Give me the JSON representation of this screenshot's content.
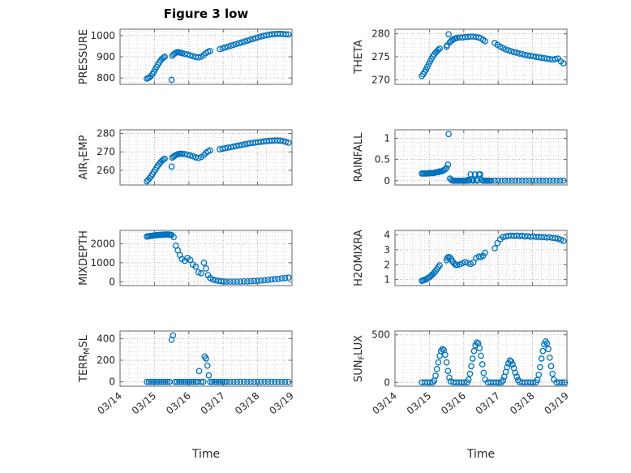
{
  "figure": {
    "title": "Figure 3 low",
    "xlabel": "Time",
    "marker_color": "#0072BD",
    "text_color": "#262626",
    "grid_color": "#b3b3b3",
    "minor_grid_color": "#d2d2d2",
    "box_color": "#666666"
  },
  "x_axis": {
    "lim": [
      0,
      5
    ],
    "ticks": [
      0,
      1,
      2,
      3,
      4,
      5
    ],
    "labels": [
      "03/14",
      "03/15",
      "03/16",
      "03/17",
      "03/18",
      "03/19"
    ],
    "minor_step": 0.25
  },
  "chart_data": [
    {
      "type": "scatter",
      "name": "PRESSURE",
      "ylabel_parts": [
        {
          "text": "PRESSURE"
        }
      ],
      "ylim": [
        770,
        1030
      ],
      "yticks": [
        800,
        900,
        1000
      ],
      "ytick_labels": [
        "800",
        "900",
        "1000"
      ],
      "x": [
        0.78,
        0.82,
        0.86,
        0.9,
        0.94,
        0.98,
        1.02,
        1.06,
        1.1,
        1.14,
        1.18,
        1.22,
        1.26,
        1.3,
        1.5,
        1.52,
        1.56,
        1.6,
        1.64,
        1.68,
        1.72,
        1.76,
        1.8,
        1.88,
        1.96,
        2.04,
        2.12,
        2.2,
        2.28,
        2.36,
        2.44,
        2.5,
        2.56,
        2.62,
        2.9,
        2.98,
        3.06,
        3.14,
        3.22,
        3.3,
        3.38,
        3.46,
        3.54,
        3.62,
        3.7,
        3.78,
        3.86,
        3.94,
        4.02,
        4.1,
        4.18,
        4.26,
        4.34,
        4.42,
        4.5,
        4.58,
        4.66,
        4.74,
        4.82,
        4.9
      ],
      "y": [
        797,
        800,
        804,
        810,
        818,
        828,
        840,
        852,
        863,
        873,
        882,
        890,
        896,
        900,
        791,
        905,
        912,
        917,
        920,
        922,
        921,
        919,
        917,
        914,
        911,
        907,
        903,
        899,
        897,
        901,
        909,
        918,
        924,
        927,
        936,
        940,
        944,
        948,
        952,
        956,
        960,
        964,
        968,
        972,
        976,
        980,
        984,
        988,
        992,
        996,
        999,
        1002,
        1004,
        1006,
        1007,
        1008,
        1008,
        1007,
        1006,
        1005
      ]
    },
    {
      "type": "scatter",
      "name": "THETA",
      "ylabel_parts": [
        {
          "text": "THETA"
        }
      ],
      "ylim": [
        269,
        281
      ],
      "yticks": [
        270,
        275,
        280
      ],
      "ytick_labels": [
        "270",
        "275",
        "280"
      ],
      "x": [
        0.78,
        0.82,
        0.86,
        0.9,
        0.94,
        0.98,
        1.02,
        1.06,
        1.1,
        1.14,
        1.18,
        1.22,
        1.26,
        1.3,
        1.5,
        1.52,
        1.56,
        1.6,
        1.64,
        1.68,
        1.72,
        1.76,
        1.8,
        1.88,
        1.96,
        2.04,
        2.12,
        2.2,
        2.28,
        2.36,
        2.44,
        2.5,
        2.56,
        2.62,
        2.9,
        2.98,
        3.06,
        3.14,
        3.22,
        3.3,
        3.38,
        3.46,
        3.54,
        3.62,
        3.7,
        3.78,
        3.86,
        3.94,
        4.02,
        4.1,
        4.18,
        4.26,
        4.34,
        4.42,
        4.5,
        4.58,
        4.66,
        4.74,
        4.82,
        4.9
      ],
      "y": [
        270.8,
        271.2,
        271.7,
        272.2,
        272.8,
        273.4,
        274.0,
        274.6,
        275.1,
        275.5,
        275.9,
        276.2,
        276.5,
        276.8,
        277.2,
        277.5,
        279.9,
        278.2,
        278.5,
        278.7,
        278.9,
        279.0,
        279.1,
        279.2,
        279.2,
        279.3,
        279.3,
        279.4,
        279.4,
        279.3,
        279.2,
        279.0,
        278.7,
        278.4,
        278.0,
        277.6,
        277.2,
        276.9,
        276.6,
        276.4,
        276.2,
        276.0,
        275.9,
        275.7,
        275.6,
        275.4,
        275.3,
        275.2,
        275.1,
        275.0,
        274.9,
        274.8,
        274.7,
        274.6,
        274.5,
        274.4,
        274.5,
        274.6,
        274.0,
        273.6
      ]
    },
    {
      "type": "scatter",
      "name": "AIR_TEMP",
      "ylabel_parts": [
        {
          "text": "AIR"
        },
        {
          "text": "T",
          "sub": true
        },
        {
          "text": "EMP"
        }
      ],
      "ylim": [
        252,
        282
      ],
      "yticks": [
        260,
        270,
        280
      ],
      "ytick_labels": [
        "260",
        "270",
        "280"
      ],
      "x": [
        0.78,
        0.82,
        0.86,
        0.9,
        0.94,
        0.98,
        1.02,
        1.06,
        1.1,
        1.14,
        1.18,
        1.22,
        1.26,
        1.3,
        1.5,
        1.52,
        1.56,
        1.6,
        1.64,
        1.68,
        1.72,
        1.76,
        1.8,
        1.88,
        1.96,
        2.04,
        2.12,
        2.2,
        2.28,
        2.36,
        2.44,
        2.5,
        2.56,
        2.62,
        2.9,
        2.98,
        3.06,
        3.14,
        3.22,
        3.3,
        3.38,
        3.46,
        3.54,
        3.62,
        3.7,
        3.78,
        3.86,
        3.94,
        4.02,
        4.1,
        4.18,
        4.26,
        4.34,
        4.42,
        4.5,
        4.58,
        4.66,
        4.74,
        4.82,
        4.9
      ],
      "y": [
        254.0,
        254.8,
        255.7,
        256.7,
        257.8,
        259.0,
        260.2,
        261.4,
        262.5,
        263.5,
        264.4,
        265.2,
        265.8,
        266.3,
        262.0,
        266.9,
        267.5,
        268.0,
        268.4,
        268.7,
        268.9,
        269.0,
        269.0,
        268.8,
        268.5,
        268.1,
        267.6,
        267.0,
        266.6,
        267.2,
        268.3,
        269.5,
        270.3,
        270.8,
        271.4,
        271.7,
        272.0,
        272.3,
        272.6,
        272.9,
        273.2,
        273.5,
        273.8,
        274.1,
        274.4,
        274.7,
        274.9,
        275.1,
        275.3,
        275.5,
        275.7,
        275.9,
        276.0,
        276.1,
        276.2,
        276.2,
        276.1,
        275.9,
        275.5,
        275.0
      ]
    },
    {
      "type": "scatter",
      "name": "RAINFALL",
      "ylabel_parts": [
        {
          "text": "RAINFALL"
        }
      ],
      "ylim": [
        -0.1,
        1.2
      ],
      "yticks": [
        0,
        0.5,
        1
      ],
      "ytick_labels": [
        "0",
        "0.5",
        "1"
      ],
      "x": [
        0.78,
        0.82,
        0.86,
        0.9,
        0.94,
        0.98,
        1.02,
        1.06,
        1.1,
        1.14,
        1.18,
        1.22,
        1.26,
        1.3,
        1.34,
        1.38,
        1.42,
        1.46,
        1.5,
        1.54,
        1.56,
        1.6,
        1.64,
        1.68,
        1.72,
        1.76,
        1.8,
        1.84,
        1.88,
        1.92,
        1.96,
        2.0,
        2.04,
        2.08,
        2.12,
        2.16,
        2.2,
        2.24,
        2.28,
        2.32,
        2.36,
        2.4,
        2.44,
        2.48,
        2.52,
        2.56,
        2.6,
        2.64,
        2.68,
        2.72,
        2.76,
        2.8,
        2.9,
        3.0,
        3.1,
        3.2,
        3.3,
        3.4,
        3.5,
        3.6,
        3.7,
        3.8,
        3.9,
        4.0,
        4.1,
        4.2,
        4.3,
        4.4,
        4.5,
        4.6,
        4.7,
        4.8,
        4.9
      ],
      "y": [
        0.17,
        0.17,
        0.17,
        0.17,
        0.17,
        0.18,
        0.18,
        0.18,
        0.18,
        0.18,
        0.2,
        0.2,
        0.2,
        0.22,
        0.22,
        0.23,
        0.25,
        0.27,
        0.3,
        0.38,
        1.1,
        0.05,
        0.02,
        0,
        0,
        0,
        0,
        0,
        0,
        0,
        0,
        0,
        0,
        0,
        0.02,
        0,
        0.15,
        0.02,
        0,
        0.15,
        0.02,
        0,
        0.15,
        0.15,
        0.02,
        0,
        0,
        0,
        0,
        0,
        0,
        0,
        0,
        0,
        0,
        0,
        0,
        0,
        0,
        0,
        0,
        0,
        0,
        0,
        0,
        0,
        0,
        0,
        0,
        0,
        0,
        0,
        0
      ]
    },
    {
      "type": "scatter",
      "name": "MIXDEPTH",
      "ylabel_parts": [
        {
          "text": "MIXDEPTH"
        }
      ],
      "ylim": [
        -200,
        2700
      ],
      "yticks": [
        0,
        1000,
        2000
      ],
      "ytick_labels": [
        "0",
        "1000",
        "2000"
      ],
      "x": [
        0.78,
        0.82,
        0.86,
        0.9,
        0.94,
        0.98,
        1.02,
        1.06,
        1.1,
        1.14,
        1.18,
        1.22,
        1.26,
        1.3,
        1.34,
        1.38,
        1.42,
        1.46,
        1.5,
        1.56,
        1.62,
        1.68,
        1.74,
        1.8,
        1.88,
        1.96,
        2.04,
        2.12,
        2.2,
        2.28,
        2.36,
        2.44,
        2.5,
        2.56,
        2.62,
        2.7,
        2.78,
        2.86,
        2.94,
        3.02,
        3.1,
        3.2,
        3.3,
        3.4,
        3.5,
        3.6,
        3.7,
        3.8,
        3.9,
        4.0,
        4.1,
        4.2,
        4.3,
        4.4,
        4.5,
        4.6,
        4.7,
        4.8,
        4.9
      ],
      "y": [
        2380,
        2390,
        2400,
        2410,
        2420,
        2430,
        2440,
        2450,
        2455,
        2460,
        2465,
        2470,
        2475,
        2480,
        2485,
        2490,
        2480,
        2470,
        2460,
        2350,
        1900,
        1650,
        1400,
        1200,
        1100,
        1250,
        1150,
        900,
        800,
        500,
        450,
        1000,
        700,
        350,
        200,
        120,
        80,
        50,
        30,
        20,
        10,
        10,
        10,
        10,
        10,
        20,
        20,
        30,
        40,
        50,
        60,
        80,
        100,
        120,
        140,
        160,
        180,
        200,
        220
      ]
    },
    {
      "type": "scatter",
      "name": "H2OMIXRA",
      "ylabel_parts": [
        {
          "text": "H2OMIXRA"
        }
      ],
      "ylim": [
        0.6,
        4.3
      ],
      "yticks": [
        1,
        2,
        3,
        4
      ],
      "ytick_labels": [
        "1",
        "2",
        "3",
        "4"
      ],
      "x": [
        0.78,
        0.82,
        0.86,
        0.9,
        0.94,
        0.98,
        1.02,
        1.06,
        1.1,
        1.14,
        1.18,
        1.22,
        1.26,
        1.3,
        1.5,
        1.52,
        1.56,
        1.6,
        1.64,
        1.68,
        1.72,
        1.76,
        1.8,
        1.88,
        1.96,
        2.04,
        2.12,
        2.2,
        2.28,
        2.36,
        2.44,
        2.5,
        2.56,
        2.62,
        2.9,
        2.98,
        3.06,
        3.14,
        3.22,
        3.3,
        3.38,
        3.46,
        3.54,
        3.62,
        3.7,
        3.78,
        3.86,
        3.94,
        4.02,
        4.1,
        4.18,
        4.26,
        4.34,
        4.42,
        4.5,
        4.58,
        4.66,
        4.74,
        4.82,
        4.9
      ],
      "y": [
        0.92,
        0.95,
        0.98,
        1.02,
        1.07,
        1.13,
        1.2,
        1.28,
        1.37,
        1.47,
        1.58,
        1.7,
        1.83,
        1.96,
        2.3,
        2.45,
        2.52,
        2.48,
        2.35,
        2.2,
        2.08,
        2.0,
        1.98,
        2.02,
        2.1,
        2.18,
        2.12,
        2.05,
        2.15,
        2.45,
        2.55,
        2.5,
        2.6,
        2.8,
        3.1,
        3.45,
        3.7,
        3.85,
        3.9,
        3.93,
        3.95,
        3.93,
        3.95,
        3.92,
        3.94,
        3.9,
        3.92,
        3.88,
        3.9,
        3.86,
        3.88,
        3.84,
        3.86,
        3.82,
        3.84,
        3.8,
        3.78,
        3.75,
        3.68,
        3.6
      ]
    },
    {
      "type": "scatter",
      "name": "TERR_MSL",
      "ylabel_parts": [
        {
          "text": "TERR"
        },
        {
          "text": "M",
          "sub": true
        },
        {
          "text": "SL"
        }
      ],
      "ylim": [
        -40,
        470
      ],
      "yticks": [
        0,
        200,
        400
      ],
      "ytick_labels": [
        "0",
        "200",
        "400"
      ],
      "x": [
        0.78,
        0.84,
        0.9,
        0.96,
        1.02,
        1.08,
        1.14,
        1.2,
        1.26,
        1.32,
        1.38,
        1.44,
        1.5,
        1.54,
        1.6,
        1.66,
        1.72,
        1.78,
        1.84,
        1.9,
        1.96,
        2.02,
        2.08,
        2.14,
        2.2,
        2.26,
        2.3,
        2.36,
        2.42,
        2.46,
        2.5,
        2.54,
        2.58,
        2.62,
        2.68,
        2.74,
        2.8,
        2.86,
        2.92,
        2.98,
        3.04,
        3.1,
        3.2,
        3.3,
        3.4,
        3.5,
        3.6,
        3.7,
        3.8,
        3.9,
        4.0,
        4.1,
        4.2,
        4.3,
        4.4,
        4.5,
        4.6,
        4.7,
        4.8,
        4.9
      ],
      "y": [
        0,
        0,
        0,
        0,
        0,
        0,
        0,
        0,
        0,
        0,
        0,
        0,
        390,
        430,
        0,
        0,
        0,
        0,
        0,
        0,
        0,
        0,
        0,
        0,
        0,
        0,
        100,
        0,
        0,
        235,
        215,
        150,
        60,
        0,
        0,
        0,
        0,
        0,
        0,
        0,
        0,
        0,
        0,
        0,
        0,
        0,
        0,
        0,
        0,
        0,
        0,
        0,
        0,
        0,
        0,
        0,
        0,
        0,
        0,
        0
      ]
    },
    {
      "type": "scatter",
      "name": "SUN_FLUX",
      "ylabel_parts": [
        {
          "text": "SUN"
        },
        {
          "text": "F",
          "sub": true
        },
        {
          "text": "LUX"
        }
      ],
      "ylim": [
        -40,
        540
      ],
      "yticks": [
        0,
        500
      ],
      "ytick_labels": [
        "0",
        "500"
      ],
      "x": [
        0.78,
        0.86,
        0.94,
        1.02,
        1.1,
        1.14,
        1.18,
        1.22,
        1.26,
        1.3,
        1.34,
        1.38,
        1.42,
        1.46,
        1.5,
        1.54,
        1.58,
        1.62,
        1.7,
        1.78,
        1.86,
        1.94,
        2.02,
        2.1,
        2.14,
        2.18,
        2.22,
        2.26,
        2.3,
        2.34,
        2.38,
        2.42,
        2.46,
        2.5,
        2.54,
        2.58,
        2.62,
        2.7,
        2.78,
        2.86,
        2.94,
        3.02,
        3.1,
        3.14,
        3.18,
        3.22,
        3.26,
        3.3,
        3.34,
        3.38,
        3.42,
        3.46,
        3.5,
        3.54,
        3.58,
        3.62,
        3.7,
        3.78,
        3.86,
        3.94,
        4.02,
        4.1,
        4.14,
        4.18,
        4.22,
        4.26,
        4.3,
        4.34,
        4.38,
        4.42,
        4.46,
        4.5,
        4.54,
        4.58,
        4.62,
        4.7,
        4.78,
        4.86,
        4.94
      ],
      "y": [
        0,
        0,
        0,
        0,
        0,
        20,
        70,
        140,
        210,
        280,
        330,
        350,
        340,
        290,
        210,
        120,
        50,
        10,
        0,
        0,
        0,
        0,
        0,
        0,
        30,
        90,
        170,
        250,
        330,
        390,
        420,
        410,
        360,
        280,
        190,
        100,
        30,
        0,
        0,
        0,
        0,
        0,
        0,
        20,
        60,
        110,
        160,
        200,
        230,
        220,
        190,
        150,
        100,
        60,
        25,
        5,
        0,
        0,
        0,
        0,
        0,
        0,
        25,
        80,
        160,
        250,
        330,
        400,
        430,
        410,
        350,
        260,
        170,
        90,
        30,
        0,
        0,
        0,
        0
      ]
    }
  ]
}
